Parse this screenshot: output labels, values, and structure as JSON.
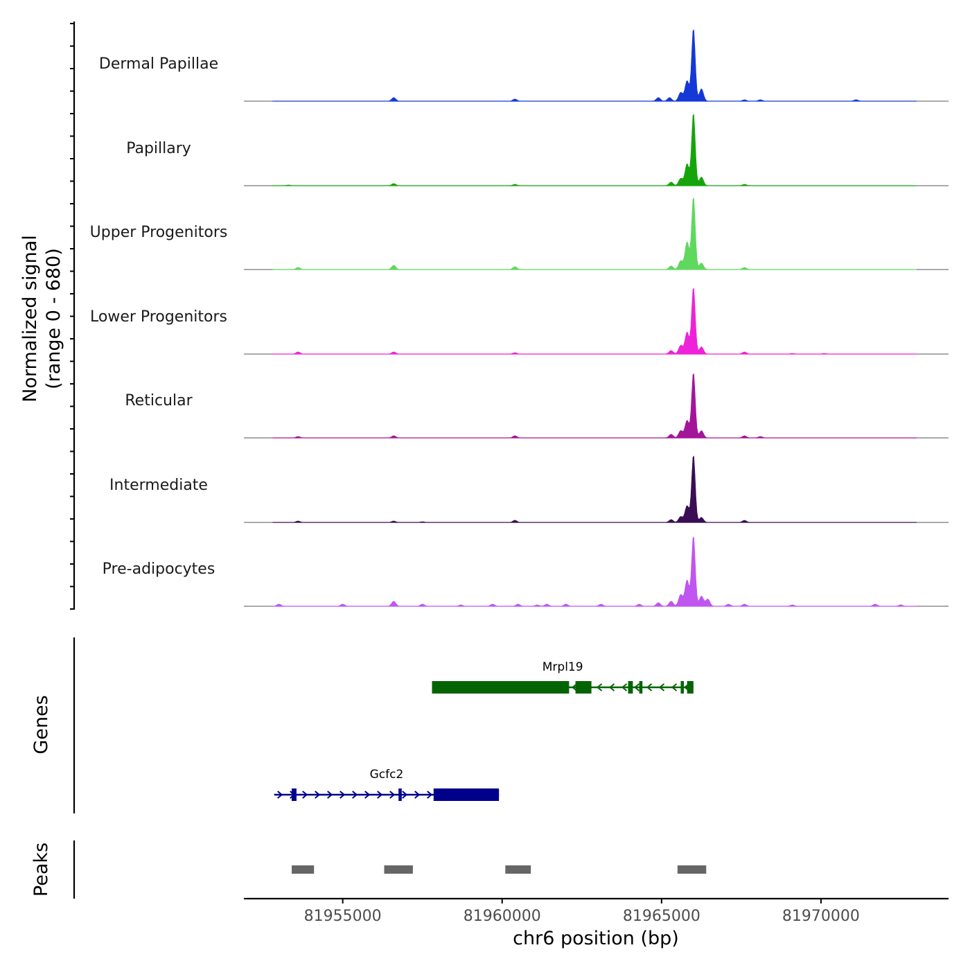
{
  "chart_data": {
    "type": "area",
    "chromosome": "chr6",
    "xlim": [
      81951900,
      81974000
    ],
    "y_axis_label_line1": "Normalized signal",
    "y_axis_label_line2": "(range 0 - 680)",
    "y_range": [
      0,
      680
    ],
    "x_axis_label": "chr6 position (bp)",
    "x_ticks": [
      81955000,
      81960000,
      81965000,
      81970000
    ],
    "x_tick_labels": [
      "81955000",
      "81960000",
      "81965000",
      "81970000"
    ],
    "track_base": [
      81952800,
      81973000
    ],
    "tracks": [
      {
        "name": "Dermal Papillae",
        "color": "#1539d6",
        "peaks": [
          [
            81956600,
            0.05
          ],
          [
            81960400,
            0.03
          ],
          [
            81965600,
            0.12
          ],
          [
            81965800,
            0.28
          ],
          [
            81966000,
            1.0
          ],
          [
            81966250,
            0.17
          ],
          [
            81964900,
            0.05
          ],
          [
            81965250,
            0.05
          ],
          [
            81967600,
            0.02
          ],
          [
            81968100,
            0.02
          ],
          [
            81971100,
            0.02
          ]
        ]
      },
      {
        "name": "Papillary",
        "color": "#15a50b",
        "peaks": [
          [
            81953300,
            0.01
          ],
          [
            81956600,
            0.03
          ],
          [
            81960400,
            0.02
          ],
          [
            81965600,
            0.1
          ],
          [
            81965800,
            0.3
          ],
          [
            81966000,
            1.0
          ],
          [
            81966250,
            0.12
          ],
          [
            81965300,
            0.05
          ],
          [
            81967600,
            0.02
          ]
        ]
      },
      {
        "name": "Upper Progenitors",
        "color": "#5fd85f",
        "peaks": [
          [
            81953600,
            0.03
          ],
          [
            81956600,
            0.06
          ],
          [
            81960400,
            0.04
          ],
          [
            81965600,
            0.12
          ],
          [
            81965800,
            0.38
          ],
          [
            81966000,
            1.0
          ],
          [
            81966250,
            0.09
          ],
          [
            81965300,
            0.05
          ],
          [
            81967600,
            0.03
          ]
        ]
      },
      {
        "name": "Lower Progenitors",
        "color": "#ee22d8",
        "peaks": [
          [
            81953600,
            0.03
          ],
          [
            81956600,
            0.03
          ],
          [
            81960400,
            0.02
          ],
          [
            81965600,
            0.12
          ],
          [
            81965800,
            0.3
          ],
          [
            81966000,
            0.92
          ],
          [
            81966250,
            0.1
          ],
          [
            81965300,
            0.05
          ],
          [
            81967600,
            0.03
          ],
          [
            81969100,
            0.01
          ],
          [
            81970100,
            0.01
          ]
        ]
      },
      {
        "name": "Reticular",
        "color": "#a4159a",
        "peaks": [
          [
            81953600,
            0.02
          ],
          [
            81956600,
            0.03
          ],
          [
            81960400,
            0.03
          ],
          [
            81965600,
            0.1
          ],
          [
            81965800,
            0.24
          ],
          [
            81966000,
            0.9
          ],
          [
            81966250,
            0.1
          ],
          [
            81965300,
            0.05
          ],
          [
            81967600,
            0.03
          ],
          [
            81968100,
            0.02
          ]
        ]
      },
      {
        "name": "Intermediate",
        "color": "#3a0d55",
        "peaks": [
          [
            81953600,
            0.02
          ],
          [
            81956600,
            0.02
          ],
          [
            81960400,
            0.03
          ],
          [
            81965600,
            0.08
          ],
          [
            81965800,
            0.23
          ],
          [
            81966000,
            0.93
          ],
          [
            81966250,
            0.07
          ],
          [
            81965300,
            0.04
          ],
          [
            81967600,
            0.03
          ],
          [
            81957500,
            0.01
          ]
        ]
      },
      {
        "name": "Pre-adipocytes",
        "color": "#c055f0",
        "peaks": [
          [
            81953000,
            0.03
          ],
          [
            81955000,
            0.03
          ],
          [
            81956600,
            0.07
          ],
          [
            81957500,
            0.03
          ],
          [
            81958700,
            0.02
          ],
          [
            81959700,
            0.03
          ],
          [
            81960500,
            0.03
          ],
          [
            81961100,
            0.02
          ],
          [
            81961400,
            0.03
          ],
          [
            81962000,
            0.03
          ],
          [
            81963100,
            0.03
          ],
          [
            81964300,
            0.03
          ],
          [
            81964900,
            0.05
          ],
          [
            81965300,
            0.07
          ],
          [
            81965600,
            0.16
          ],
          [
            81965800,
            0.36
          ],
          [
            81966000,
            0.97
          ],
          [
            81966250,
            0.14
          ],
          [
            81966450,
            0.1
          ],
          [
            81967100,
            0.03
          ],
          [
            81967600,
            0.03
          ],
          [
            81969100,
            0.02
          ],
          [
            81971700,
            0.03
          ],
          [
            81972500,
            0.02
          ]
        ]
      }
    ],
    "genes_label": "Genes",
    "genes": [
      {
        "name": "Mrpl19",
        "strand": "-",
        "color": "#046404",
        "start": 81957800,
        "end": 81966000,
        "exons": [
          [
            81957800,
            81962100
          ],
          [
            81962300,
            81962800
          ],
          [
            81963950,
            81964100
          ],
          [
            81964300,
            81964400
          ],
          [
            81965600,
            81965700
          ],
          [
            81965800,
            81966000
          ]
        ]
      },
      {
        "name": "Gcfc2",
        "strand": "+",
        "color": "#00008b",
        "start": 81952850,
        "end": 81959900,
        "exons": [
          [
            81953400,
            81953550
          ],
          [
            81956750,
            81956850
          ],
          [
            81957850,
            81959900
          ]
        ]
      }
    ],
    "peaks_label": "Peaks",
    "peak_color": "#666666",
    "peak_regions": [
      [
        81953400,
        81954100
      ],
      [
        81956300,
        81957200
      ],
      [
        81960100,
        81960900
      ],
      [
        81965500,
        81966400
      ]
    ]
  }
}
